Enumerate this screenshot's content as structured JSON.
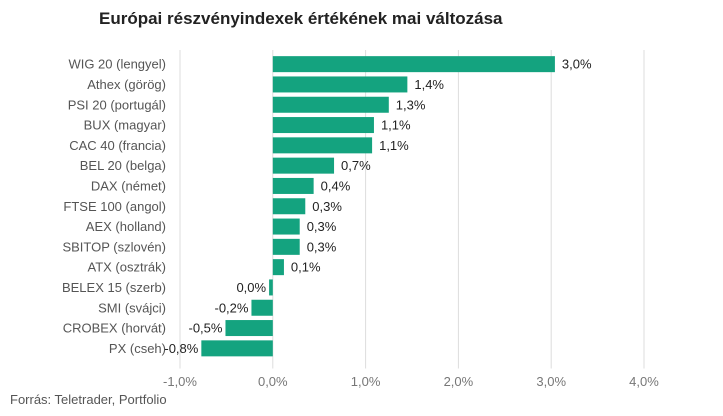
{
  "chart_data": {
    "type": "bar",
    "orientation": "horizontal",
    "title": "Európai részvényindexek értékének mai változása",
    "source": "Forrás: Teletrader, Portfolio",
    "categories": [
      "WIG 20 (lengyel)",
      "Athex (görög)",
      "PSI 20 (portugál)",
      "BUX (magyar)",
      "CAC 40 (francia)",
      "BEL 20 (belga)",
      "DAX (német)",
      "FTSE 100 (angol)",
      "AEX (holland)",
      "SBITOP (szlovén)",
      "ATX (osztrák)",
      "BELEX 15 (szerb)",
      "SMI (svájci)",
      "CROBEX (horvát)",
      "PX (cseh)"
    ],
    "values": [
      3.04,
      1.45,
      1.25,
      1.09,
      1.07,
      0.66,
      0.44,
      0.35,
      0.29,
      0.29,
      0.12,
      -0.04,
      -0.23,
      -0.51,
      -0.77
    ],
    "value_labels": [
      "3,0%",
      "1,4%",
      "1,3%",
      "1,1%",
      "1,1%",
      "0,7%",
      "0,4%",
      "0,3%",
      "0,3%",
      "0,3%",
      "0,1%",
      "0,0%",
      "-0,2%",
      "-0,5%",
      "-0,8%"
    ],
    "xlim": [
      -1.0,
      4.0
    ],
    "xticks": [
      -1.0,
      0.0,
      1.0,
      2.0,
      3.0,
      4.0
    ],
    "xtick_labels": [
      "-1,0%",
      "0,0%",
      "1,0%",
      "2,0%",
      "3,0%",
      "4,0%"
    ],
    "grid": true,
    "bar_color": "#14a37f",
    "grid_color": "#dddddd"
  }
}
